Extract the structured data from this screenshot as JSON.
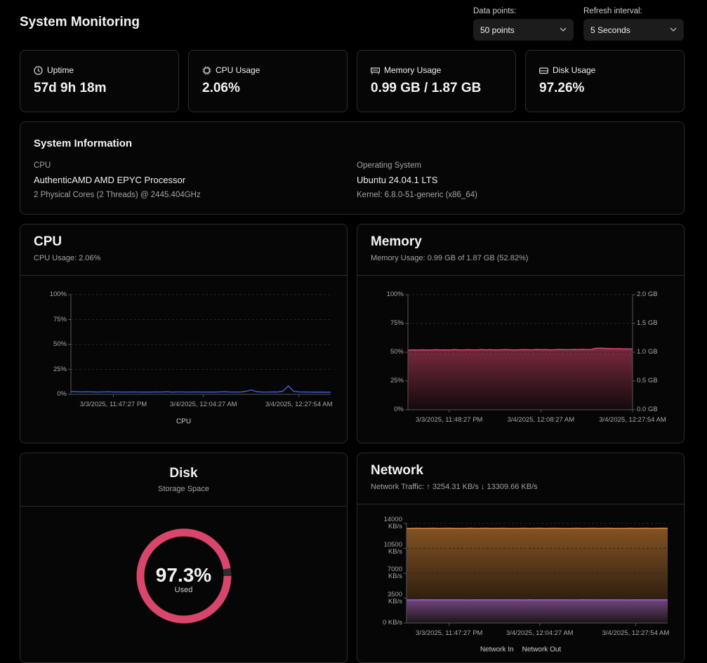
{
  "header": {
    "title": "System Monitoring",
    "data_points_label": "Data points:",
    "data_points_value": "50 points",
    "refresh_label": "Refresh interval:",
    "refresh_value": "5 Seconds"
  },
  "stats": [
    {
      "label": "Uptime",
      "value": "57d 9h 18m"
    },
    {
      "label": "CPU Usage",
      "value": "2.06%"
    },
    {
      "label": "Memory Usage",
      "value": "0.99 GB / 1.87 GB"
    },
    {
      "label": "Disk Usage",
      "value": "97.26%"
    }
  ],
  "system_info": {
    "title": "System Information",
    "cpu_label": "CPU",
    "cpu_model": "AuthenticAMD AMD EPYC Processor",
    "cpu_detail": "2 Physical Cores (2 Threads) @ 2445.404GHz",
    "os_label": "Operating System",
    "os_name": "Ubuntu 24.04.1 LTS",
    "kernel": "Kernel: 6.8.0-51-generic (x86_64)"
  },
  "chart_data": [
    {
      "type": "line",
      "title": "CPU",
      "subtitle": "CPU Usage: 2.06%",
      "grid": true,
      "legend": true,
      "categories": [
        null,
        null,
        null,
        null,
        null,
        null,
        null,
        null,
        "3/3/2025, 11:47:27 PM",
        null,
        null,
        null,
        null,
        null,
        null,
        null,
        null,
        null,
        null,
        null,
        null,
        null,
        null,
        null,
        null,
        "3/4/2025, 12:04:27 AM",
        null,
        null,
        null,
        null,
        null,
        null,
        null,
        null,
        null,
        null,
        null,
        null,
        null,
        null,
        null,
        null,
        null,
        "3/4/2025, 12:27:54 AM",
        null,
        null,
        null,
        null,
        null,
        null
      ],
      "ylim": [
        0,
        100
      ],
      "yticks": [
        {
          "value": 0,
          "label": "0%"
        },
        {
          "value": 25,
          "label": "25%"
        },
        {
          "value": 50,
          "label": "50%"
        },
        {
          "value": 75,
          "label": "75%"
        },
        {
          "value": 100,
          "label": "100%"
        }
      ],
      "series": [
        {
          "name": "CPU",
          "color": "#3b5bdb",
          "values": [
            2.6,
            2.5,
            2.4,
            2.5,
            2.4,
            2.3,
            2.4,
            2.5,
            2.3,
            2.4,
            2.2,
            2.3,
            2.4,
            2.2,
            2.3,
            2.2,
            2.4,
            2.3,
            2.5,
            2.2,
            2.3,
            2.4,
            2.2,
            2.3,
            2.4,
            2.2,
            2.3,
            2.2,
            2.4,
            2.5,
            2.3,
            2.2,
            2.3,
            2.9,
            4.4,
            2.6,
            2.3,
            2.2,
            2.4,
            2.3,
            3.2,
            8.4,
            3.0,
            2.4,
            2.3,
            2.2,
            2.1,
            2.2,
            2.1,
            2.06
          ]
        }
      ]
    },
    {
      "type": "area",
      "title": "Memory",
      "subtitle": "Memory Usage: 0.99 GB of 1.87 GB (52.82%)",
      "grid": true,
      "legend": false,
      "categories": [
        null,
        null,
        null,
        null,
        null,
        null,
        null,
        null,
        null,
        "3/3/2025, 11:48:27 PM",
        null,
        null,
        null,
        null,
        null,
        null,
        null,
        null,
        null,
        null,
        null,
        null,
        null,
        null,
        null,
        null,
        null,
        null,
        null,
        "3/4/2025, 12:08:27 AM",
        null,
        null,
        null,
        null,
        null,
        null,
        null,
        null,
        null,
        null,
        null,
        null,
        null,
        null,
        null,
        null,
        null,
        null,
        null,
        "3/4/2025, 12:27:54 AM"
      ],
      "ylim": [
        0,
        100
      ],
      "yticks": [
        {
          "value": 0,
          "label": "0%"
        },
        {
          "value": 25,
          "label": "25%"
        },
        {
          "value": 50,
          "label": "50%"
        },
        {
          "value": 75,
          "label": "75%"
        },
        {
          "value": 100,
          "label": "100%"
        }
      ],
      "y2lim": [
        0,
        2
      ],
      "y2ticks": [
        {
          "value": 0,
          "label": "0.0 GB"
        },
        {
          "value": 0.5,
          "label": "0.5 GB"
        },
        {
          "value": 1,
          "label": "1.0 GB"
        },
        {
          "value": 1.5,
          "label": "1.5 GB"
        },
        {
          "value": 2,
          "label": "2.0 GB"
        }
      ],
      "series": [
        {
          "name": "Memory",
          "color": "#d9466b",
          "values": [
            51.8,
            52.0,
            51.9,
            52.1,
            52.0,
            51.9,
            52.2,
            52.0,
            52.1,
            51.9,
            52.3,
            52.1,
            52.0,
            52.2,
            52.1,
            52.0,
            52.3,
            52.1,
            52.2,
            52.0,
            52.1,
            52.3,
            52.2,
            52.0,
            52.1,
            52.3,
            52.2,
            52.1,
            52.4,
            52.2,
            52.3,
            52.1,
            52.2,
            52.4,
            52.3,
            52.2,
            52.4,
            52.3,
            52.5,
            52.3,
            52.4,
            53.4,
            53.5,
            53.3,
            53.2,
            53.0,
            53.1,
            52.9,
            52.9,
            52.82
          ]
        }
      ]
    },
    {
      "type": "donut",
      "title": "Disk",
      "subtitle": "Storage Space",
      "range": [
        0,
        100
      ],
      "values": [
        97.3
      ],
      "value_labels": [
        "97.3%"
      ],
      "center_label": "Used",
      "color": "#d9466b",
      "track_color": "#2e2e2e"
    },
    {
      "type": "area",
      "title": "Network",
      "subtitle": "Network Traffic: ↑ 3254.31 KB/s ↓ 13309.66 KB/s",
      "grid": true,
      "legend": true,
      "categories": [
        null,
        null,
        null,
        null,
        null,
        null,
        null,
        null,
        "3/3/2025, 11:47:27 PM",
        null,
        null,
        null,
        null,
        null,
        null,
        null,
        null,
        null,
        null,
        null,
        null,
        null,
        null,
        null,
        null,
        "3/4/2025, 12:04:27 AM",
        null,
        null,
        null,
        null,
        null,
        null,
        null,
        null,
        null,
        null,
        null,
        null,
        null,
        null,
        null,
        null,
        null,
        "3/4/2025, 12:27:54 AM",
        null,
        null,
        null,
        null,
        null,
        null
      ],
      "ylim": [
        0,
        14000
      ],
      "yticks": [
        {
          "value": 0,
          "label": "0 KB/s"
        },
        {
          "value": 3500,
          "label": "3500 KB/s"
        },
        {
          "value": 7000,
          "label": "7000 KB/s"
        },
        {
          "value": 10500,
          "label": "10500 KB/s"
        },
        {
          "value": 14000,
          "label": "14000 KB/s"
        }
      ],
      "series": [
        {
          "name": "Network In",
          "color": "#e8913a",
          "values": [
            13280,
            13295,
            13310,
            13290,
            13300,
            13305,
            13285,
            13300,
            13310,
            13295,
            13280,
            13295,
            13310,
            13290,
            13300,
            13305,
            13285,
            13300,
            13310,
            13295,
            13280,
            13295,
            13310,
            13290,
            13300,
            13305,
            13285,
            13300,
            13310,
            13295,
            13280,
            13295,
            13310,
            13290,
            13300,
            13305,
            13285,
            13300,
            13310,
            13295,
            13280,
            13295,
            13310,
            13290,
            13300,
            13305,
            13285,
            13300,
            13310,
            13309.66
          ]
        },
        {
          "name": "Network Out",
          "color": "#a062d8",
          "values": [
            3250,
            3255,
            3248,
            3260,
            3252,
            3254,
            3249,
            3256,
            3251,
            3253,
            3250,
            3255,
            3248,
            3260,
            3252,
            3254,
            3249,
            3256,
            3251,
            3253,
            3250,
            3255,
            3248,
            3260,
            3252,
            3254,
            3249,
            3256,
            3251,
            3253,
            3250,
            3255,
            3248,
            3260,
            3252,
            3254,
            3249,
            3256,
            3251,
            3253,
            3250,
            3255,
            3248,
            3260,
            3252,
            3254,
            3249,
            3256,
            3251,
            3254.31
          ]
        }
      ]
    }
  ]
}
